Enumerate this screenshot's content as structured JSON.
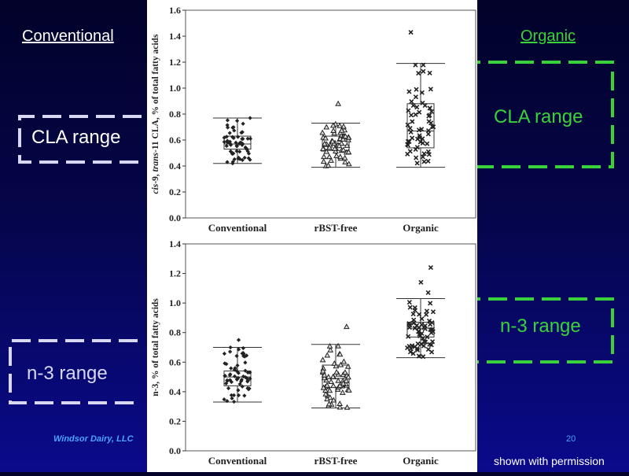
{
  "slide": {
    "conventional_label": "Conventional",
    "organic_label": "Organic",
    "left_cla_bracket_label": "CLA range",
    "left_n3_bracket_label": "n-3  range",
    "right_cla_bracket_label": "CLA range",
    "right_n3_bracket_label": "n-3  range",
    "footer_left": "Windsor Dairy, LLC",
    "page_number": "20",
    "permission_note": "shown with permission",
    "colors": {
      "organic_green": "#3ad23a",
      "white": "#ffffff",
      "bracket_lavender": "#d8d8f4"
    }
  },
  "chart_data": [
    {
      "type": "box",
      "ylabel_parts": [
        "cis",
        "-9, ",
        "trans",
        "-11 CLA, % of total fatty acids"
      ],
      "ylim": [
        0,
        1.6
      ],
      "yticks": [
        "0.0",
        "0.2",
        "0.4",
        "0.6",
        "0.8",
        "1.0",
        "1.2",
        "1.4",
        "1.6"
      ],
      "categories": [
        "Conventional",
        "rBST-free",
        "Organic"
      ],
      "markers": [
        "diamond",
        "triangle",
        "cross"
      ],
      "boxes": [
        {
          "whisker_low": 0.42,
          "q1": 0.53,
          "median": 0.57,
          "q3": 0.63,
          "whisker_high": 0.77
        },
        {
          "whisker_low": 0.39,
          "q1": 0.52,
          "median": 0.56,
          "q3": 0.63,
          "whisker_high": 0.73
        },
        {
          "whisker_low": 0.39,
          "q1": 0.54,
          "median": 0.67,
          "q3": 0.88,
          "whisker_high": 1.19
        }
      ],
      "outliers": [
        [],
        [
          0.88
        ],
        [
          1.43
        ]
      ]
    },
    {
      "type": "box",
      "ylabel_parts": [
        "n-3, % of total fatty acids"
      ],
      "ylim": [
        0,
        1.4
      ],
      "yticks": [
        "0.0",
        "0.2",
        "0.4",
        "0.6",
        "0.8",
        "1.0",
        "1.2",
        "1.4"
      ],
      "categories": [
        "Conventional",
        "rBST-free",
        "Organic"
      ],
      "markers": [
        "diamond",
        "triangle",
        "cross"
      ],
      "boxes": [
        {
          "whisker_low": 0.33,
          "q1": 0.44,
          "median": 0.5,
          "q3": 0.54,
          "whisker_high": 0.7
        },
        {
          "whisker_low": 0.29,
          "q1": 0.43,
          "median": 0.49,
          "q3": 0.58,
          "whisker_high": 0.72
        },
        {
          "whisker_low": 0.63,
          "q1": 0.77,
          "median": 0.83,
          "q3": 0.87,
          "whisker_high": 1.03
        }
      ],
      "outliers": [
        [
          0.75
        ],
        [
          0.84
        ],
        [
          1.24,
          1.14,
          1.07
        ]
      ]
    }
  ]
}
